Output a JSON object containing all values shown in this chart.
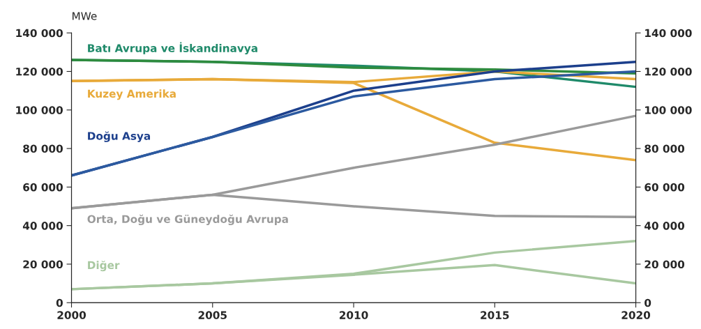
{
  "chart_data": {
    "type": "line",
    "ylabel": "MWe",
    "x": [
      2000,
      2005,
      2010,
      2015,
      2020
    ],
    "xlim": [
      2000,
      2020
    ],
    "xticks": [
      2000,
      2005,
      2010,
      2015,
      2020
    ],
    "ylim": [
      0,
      140000
    ],
    "yticks": [
      0,
      {
        "value": 20000,
        "label": "20 000"
      },
      {
        "value": 40000,
        "label": "40 000"
      },
      {
        "value": 60000,
        "label": "60 000"
      },
      {
        "value": 80000,
        "label": "80 000"
      },
      {
        "value": 100000,
        "label": "100 000"
      },
      {
        "value": 120000,
        "label": "120 000"
      },
      {
        "value": 140000,
        "label": "140 000"
      }
    ],
    "y2lim": [
      0,
      140000
    ],
    "y2ticks": [
      0,
      {
        "value": 20000,
        "label": "20 000"
      },
      {
        "value": 40000,
        "label": "40 000"
      },
      {
        "value": 60000,
        "label": "60 000"
      },
      {
        "value": 80000,
        "label": "80 000"
      },
      {
        "value": 100000,
        "label": "100 000"
      },
      {
        "value": 120000,
        "label": "120 000"
      },
      {
        "value": 140000,
        "label": "140 000"
      }
    ],
    "grid": false,
    "legend": false,
    "marker": "none",
    "line_style": "solid",
    "series": [
      {
        "name": "Batı Avrupa ve İskandinavya",
        "color": "#1f8a6a",
        "values": [
          126000,
          125000,
          123000,
          120000,
          112000
        ]
      },
      {
        "color": "#2e8b3e",
        "values": [
          126000,
          125000,
          122000,
          121000,
          119000
        ]
      },
      {
        "name": "Kuzey Amerika",
        "color": "#e8aa3a",
        "values": [
          115000,
          116000,
          114500,
          120000,
          116000
        ]
      },
      {
        "color": "#e8aa3a",
        "values": [
          115000,
          116000,
          114000,
          83000,
          74000
        ]
      },
      {
        "name": "Doğu Asya",
        "color": "#1c3f8c",
        "values": [
          66000,
          86000,
          110000,
          120000,
          125000
        ]
      },
      {
        "color": "#2c5aa0",
        "values": [
          66000,
          86000,
          107000,
          116000,
          120000
        ]
      },
      {
        "name": "Orta, Doğu ve Güneydoğu Avrupa",
        "color": "#9a9a9a",
        "values": [
          49000,
          56000,
          70000,
          82000,
          97000
        ]
      },
      {
        "color": "#9a9a9a",
        "values": [
          49000,
          56000,
          50000,
          45000,
          44500
        ]
      },
      {
        "name": "Diğer",
        "color": "#a8c8a0",
        "values": [
          7000,
          10000,
          15000,
          26000,
          32000
        ]
      },
      {
        "color": "#a8c8a0",
        "values": [
          7000,
          10000,
          14500,
          19500,
          10000
        ]
      }
    ]
  }
}
